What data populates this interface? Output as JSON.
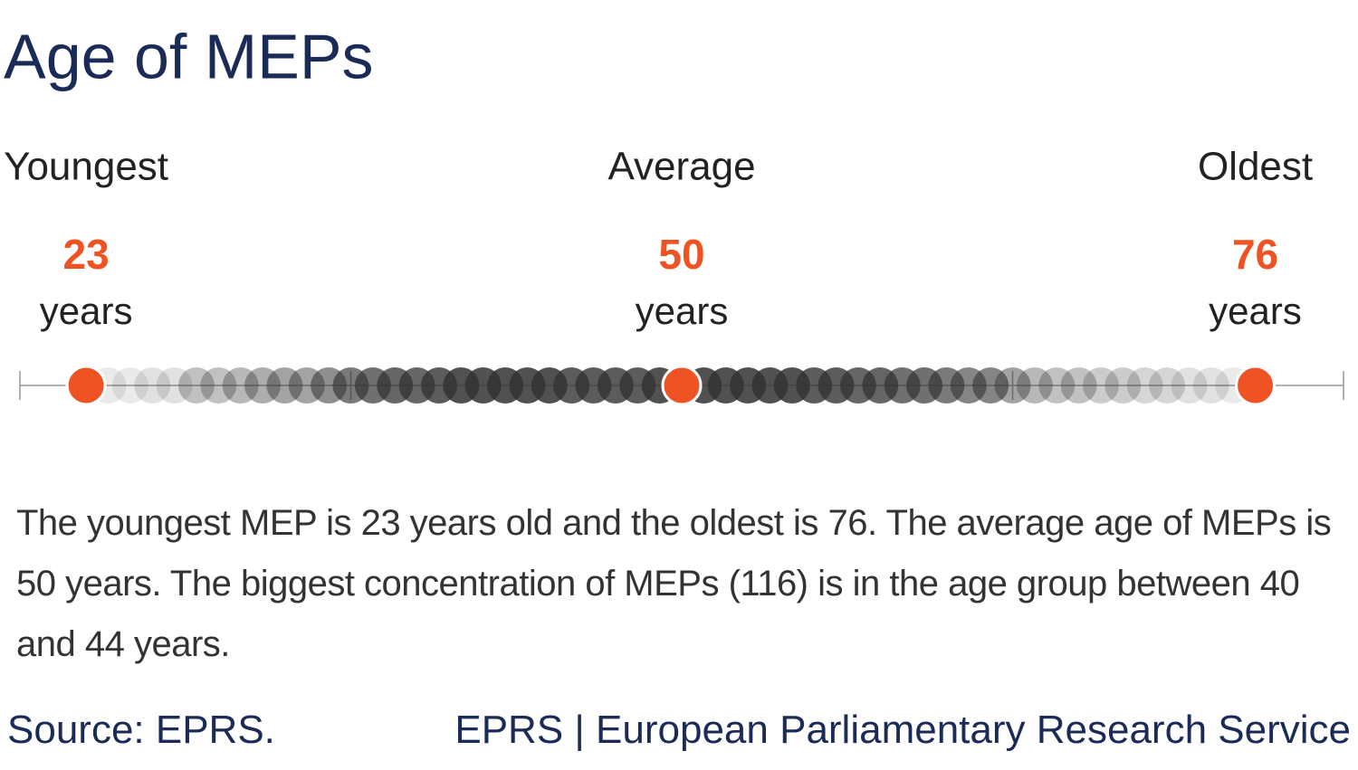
{
  "chart_data": {
    "type": "dot-strip",
    "title": "Age of MEPs",
    "xlim": [
      20,
      80
    ],
    "xticks": [
      20,
      35,
      65,
      80
    ],
    "x": [
      23,
      24,
      25,
      26,
      27,
      28,
      29,
      30,
      31,
      32,
      33,
      34,
      35,
      36,
      37,
      38,
      39,
      40,
      41,
      42,
      43,
      44,
      45,
      46,
      47,
      48,
      49,
      50,
      51,
      52,
      53,
      54,
      55,
      56,
      57,
      58,
      59,
      60,
      61,
      62,
      63,
      64,
      65,
      66,
      67,
      68,
      69,
      70,
      71,
      72,
      73,
      74,
      75,
      76
    ],
    "intensity": [
      0.05,
      0.1,
      0.1,
      0.15,
      0.15,
      0.3,
      0.3,
      0.35,
      0.4,
      0.45,
      0.45,
      0.55,
      0.65,
      0.7,
      0.75,
      0.75,
      0.8,
      0.85,
      0.85,
      0.85,
      0.85,
      0.85,
      0.8,
      0.8,
      0.8,
      0.8,
      0.85,
      0.85,
      0.85,
      0.85,
      0.85,
      0.85,
      0.85,
      0.8,
      0.8,
      0.75,
      0.75,
      0.7,
      0.7,
      0.65,
      0.6,
      0.6,
      0.45,
      0.35,
      0.3,
      0.3,
      0.25,
      0.25,
      0.2,
      0.2,
      0.15,
      0.15,
      0.1,
      0.1
    ],
    "dot_color": "#333333",
    "highlight_color": "#f05323",
    "markers": [
      {
        "label": "Youngest",
        "value": 23,
        "unit": "years"
      },
      {
        "label": "Average",
        "value": 50,
        "unit": "years"
      },
      {
        "label": "Oldest",
        "value": 76,
        "unit": "years"
      }
    ],
    "description": "The youngest MEP is 23 years old and the oldest is 76. The average age of MEPs is 50 years.  The biggest concentration of MEPs (116) is in the age group between 40 and 44 years.",
    "source": "Source: EPRS.",
    "credit": "EPRS | European Parliamentary Research Service"
  }
}
